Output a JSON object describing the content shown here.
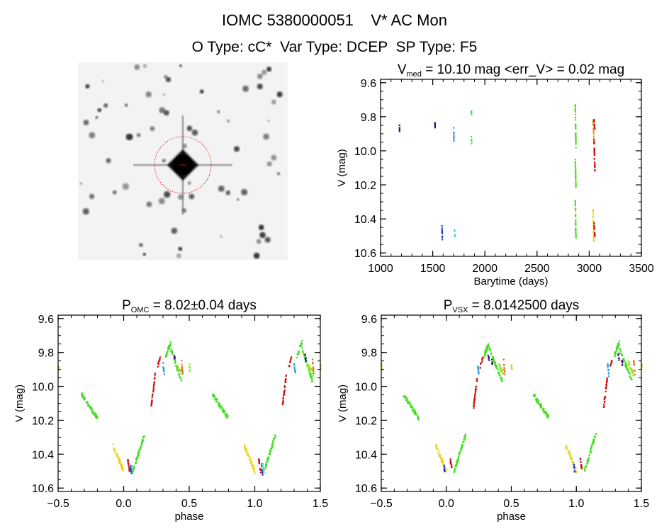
{
  "header": {
    "title": "IOMC 5380000051    V* AC Mon",
    "subtitle": "O Type: cC*  Var Type: DCEP  SP Type: F5"
  },
  "chart_data": [
    {
      "type": "image",
      "description_label": "",
      "content": "finder-chart"
    },
    {
      "type": "scatter",
      "title_main": "V",
      "title_sub": "med",
      "title_rest": " = 10.10 mag <err_V> = 0.02 mag",
      "xlabel": "Barytime (days)",
      "ylabel": "V (mag)",
      "xlim": [
        1000,
        3500
      ],
      "ylim": [
        10.62,
        9.58
      ],
      "y_inverted": true,
      "xticks": [
        1000,
        1500,
        2000,
        2500,
        3000,
        3500
      ],
      "xtick_labels": [
        "1000",
        "1500",
        "2000",
        "2500",
        "3000",
        "3500"
      ],
      "yticks": [
        9.6,
        9.8,
        10.0,
        10.2,
        10.4,
        10.6
      ],
      "ytick_labels": [
        "9.6",
        "9.8",
        "10.0",
        "10.2",
        "10.4",
        "10.6"
      ],
      "x_minor": 100,
      "y_minor": 0.05,
      "grid": false,
      "groups": [
        {
          "x": [
            1180,
            1182
          ],
          "y": [
            9.85,
            9.88
          ],
          "color": "#4a0a6a",
          "n": 6
        },
        {
          "x": [
            1520,
            1522
          ],
          "y": [
            9.81,
            9.86
          ],
          "color": "#3a0a90",
          "n": 6
        },
        {
          "x": [
            1588,
            1592
          ],
          "y": [
            10.45,
            10.52
          ],
          "color": "#1c3cd0",
          "n": 10
        },
        {
          "x": [
            1700,
            1702
          ],
          "y": [
            9.86,
            9.94
          ],
          "color": "#28a0e0",
          "n": 10
        },
        {
          "x": [
            1708,
            1712
          ],
          "y": [
            10.46,
            10.51
          ],
          "color": "#40e0d0",
          "n": 8
        },
        {
          "x": [
            1868,
            1872
          ],
          "y": [
            9.76,
            9.78
          ],
          "color": "#40e060",
          "n": 6
        },
        {
          "x": [
            1868,
            1872
          ],
          "y": [
            9.92,
            9.95
          ],
          "color": "#40e060",
          "n": 6
        },
        {
          "x": [
            2866,
            2872
          ],
          "y": [
            9.73,
            9.99
          ],
          "color": "#50e020",
          "n": 40
        },
        {
          "x": [
            2866,
            2872
          ],
          "y": [
            10.05,
            10.22
          ],
          "color": "#50e020",
          "n": 30
        },
        {
          "x": [
            2866,
            2872
          ],
          "y": [
            10.28,
            10.52
          ],
          "color": "#50e020",
          "n": 40
        },
        {
          "x": [
            3036,
            3044
          ],
          "y": [
            9.82,
            9.93
          ],
          "color": "#e0a020",
          "n": 20
        },
        {
          "x": [
            3036,
            3044
          ],
          "y": [
            10.33,
            10.53
          ],
          "color": "#f0d020",
          "n": 30
        },
        {
          "x": [
            3046,
            3054
          ],
          "y": [
            9.82,
            9.88
          ],
          "color": "#d01010",
          "n": 12
        },
        {
          "x": [
            3046,
            3054
          ],
          "y": [
            9.94,
            10.12
          ],
          "color": "#d01010",
          "n": 30
        },
        {
          "x": [
            3046,
            3054
          ],
          "y": [
            10.43,
            10.51
          ],
          "color": "#d01010",
          "n": 14
        }
      ]
    },
    {
      "type": "scatter",
      "title_main": "P",
      "title_sub": "OMC",
      "title_rest": " = 8.02±0.04 days",
      "xlabel": "phase",
      "ylabel": "V (mag)",
      "xlim": [
        -0.5,
        1.5
      ],
      "ylim": [
        10.62,
        9.58
      ],
      "y_inverted": true,
      "xticks": [
        -0.5,
        0.0,
        0.5,
        1.0,
        1.5
      ],
      "xtick_labels": [
        "-0.5",
        "0.0",
        "0.5",
        "1.0",
        "1.5"
      ],
      "yticks": [
        9.6,
        9.8,
        10.0,
        10.2,
        10.4,
        10.6
      ],
      "ytick_labels": [
        "9.6",
        "9.8",
        "10.0",
        "10.2",
        "10.4",
        "10.6"
      ],
      "x_minor": 0.1,
      "y_minor": 0.05,
      "grid": false,
      "phase_repeat": true,
      "groups": [
        {
          "x": [
            0.68,
            0.8
          ],
          "y": [
            10.05,
            10.19
          ],
          "color": "#40e020",
          "n": 60
        },
        {
          "x": [
            0.92,
            1.0
          ],
          "y": [
            10.35,
            10.5
          ],
          "color": "#f0d020",
          "n": 50
        },
        {
          "x": [
            0.03,
            0.045
          ],
          "y": [
            10.43,
            10.5
          ],
          "color": "#d01010",
          "n": 14
        },
        {
          "x": [
            0.05,
            0.06
          ],
          "y": [
            10.45,
            10.52
          ],
          "color": "#1c3cd0",
          "n": 8
        },
        {
          "x": [
            0.06,
            0.07
          ],
          "y": [
            10.46,
            10.51
          ],
          "color": "#40e0d0",
          "n": 8
        },
        {
          "x": [
            0.07,
            0.16
          ],
          "y": [
            10.5,
            10.28
          ],
          "color": "#40e020",
          "n": 50
        },
        {
          "x": [
            0.21,
            0.24
          ],
          "y": [
            10.12,
            9.93
          ],
          "color": "#d01010",
          "n": 30
        },
        {
          "x": [
            0.26,
            0.28
          ],
          "y": [
            9.88,
            9.83
          ],
          "color": "#d01010",
          "n": 10
        },
        {
          "x": [
            0.3,
            0.31
          ],
          "y": [
            9.87,
            9.93
          ],
          "color": "#28a0e0",
          "n": 10
        },
        {
          "x": [
            0.32,
            0.36
          ],
          "y": [
            9.82,
            9.74
          ],
          "color": "#40e020",
          "n": 30
        },
        {
          "x": [
            0.36,
            0.44
          ],
          "y": [
            9.78,
            9.97
          ],
          "color": "#40e020",
          "n": 40
        },
        {
          "x": [
            0.38,
            0.39
          ],
          "y": [
            9.81,
            9.84
          ],
          "color": "#3a0a90",
          "n": 6
        },
        {
          "x": [
            0.4,
            0.45
          ],
          "y": [
            9.87,
            9.93
          ],
          "color": "#a0e020",
          "n": 20
        },
        {
          "x": [
            0.44,
            0.45
          ],
          "y": [
            9.85,
            9.93
          ],
          "color": "#e07020",
          "n": 10
        },
        {
          "x": [
            0.5,
            0.505
          ],
          "y": [
            9.87,
            9.9
          ],
          "color": "#a0e020",
          "n": 6
        }
      ]
    },
    {
      "type": "scatter",
      "title_main": "P",
      "title_sub": "VSX",
      "title_rest": " = 8.0142500 days",
      "xlabel": "phase",
      "ylabel": "V (mag)",
      "xlim": [
        -0.5,
        1.5
      ],
      "ylim": [
        10.62,
        9.58
      ],
      "y_inverted": true,
      "xticks": [
        -0.5,
        0.0,
        0.5,
        1.0,
        1.5
      ],
      "xtick_labels": [
        "-0.5",
        "0.0",
        "0.5",
        "1.0",
        "1.5"
      ],
      "yticks": [
        9.6,
        9.8,
        10.0,
        10.2,
        10.4,
        10.6
      ],
      "ytick_labels": [
        "9.6",
        "9.8",
        "10.0",
        "10.2",
        "10.4",
        "10.6"
      ],
      "x_minor": 0.1,
      "y_minor": 0.05,
      "grid": false,
      "phase_repeat": true,
      "groups": [
        {
          "x": [
            0.67,
            0.79
          ],
          "y": [
            10.05,
            10.19
          ],
          "color": "#40e020",
          "n": 60
        },
        {
          "x": [
            0.92,
            1.0
          ],
          "y": [
            10.35,
            10.5
          ],
          "color": "#f0d020",
          "n": 50
        },
        {
          "x": [
            0.98,
            0.99
          ],
          "y": [
            10.46,
            10.52
          ],
          "color": "#1c3cd0",
          "n": 8
        },
        {
          "x": [
            0.03,
            0.045
          ],
          "y": [
            10.43,
            10.5
          ],
          "color": "#d01010",
          "n": 14
        },
        {
          "x": [
            0.06,
            0.15
          ],
          "y": [
            10.5,
            10.28
          ],
          "color": "#40e020",
          "n": 50
        },
        {
          "x": [
            0.21,
            0.24
          ],
          "y": [
            10.12,
            9.93
          ],
          "color": "#d01010",
          "n": 30
        },
        {
          "x": [
            0.24,
            0.25
          ],
          "y": [
            9.87,
            9.93
          ],
          "color": "#28a0e0",
          "n": 10
        },
        {
          "x": [
            0.26,
            0.28
          ],
          "y": [
            9.88,
            9.83
          ],
          "color": "#d01010",
          "n": 10
        },
        {
          "x": [
            0.29,
            0.33
          ],
          "y": [
            9.82,
            9.74
          ],
          "color": "#40e020",
          "n": 30
        },
        {
          "x": [
            0.33,
            0.43
          ],
          "y": [
            9.78,
            9.97
          ],
          "color": "#40e020",
          "n": 40
        },
        {
          "x": [
            0.32,
            0.33
          ],
          "y": [
            9.81,
            9.84
          ],
          "color": "#3a0a90",
          "n": 6
        },
        {
          "x": [
            0.35,
            0.355
          ],
          "y": [
            9.85,
            9.88
          ],
          "color": "#4a0a6a",
          "n": 6
        },
        {
          "x": [
            0.4,
            0.44
          ],
          "y": [
            9.86,
            9.93
          ],
          "color": "#a0e020",
          "n": 20
        },
        {
          "x": [
            0.44,
            0.45
          ],
          "y": [
            9.85,
            9.93
          ],
          "color": "#e07020",
          "n": 10
        },
        {
          "x": [
            0.5,
            0.505
          ],
          "y": [
            9.87,
            9.9
          ],
          "color": "#a0e020",
          "n": 6
        }
      ]
    }
  ]
}
